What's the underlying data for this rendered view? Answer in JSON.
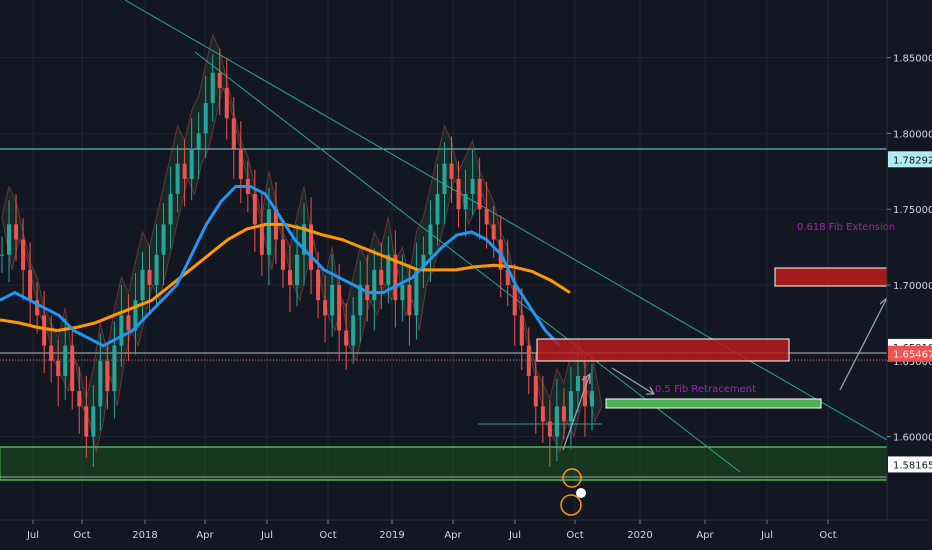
{
  "chart_data": {
    "type": "line",
    "instrument_note": "",
    "x_ticks": [
      "Jul",
      "Oct",
      "2018",
      "Apr",
      "Jul",
      "Oct",
      "2019",
      "Apr",
      "Jul",
      "Oct",
      "2020",
      "Apr",
      "Jul",
      "Oct"
    ],
    "y_ticks": [
      "1.85000",
      "1.80000",
      "1.75000",
      "1.70000",
      "1.65000",
      "1.60000"
    ],
    "ylim": [
      1.545,
      1.888
    ],
    "price_tags": [
      {
        "label": "1.78292",
        "value": 1.78292,
        "color": "#b2ebf2",
        "text_color": "#131722"
      },
      {
        "label": "1.65918",
        "value": 1.65918,
        "color": "#ffffff",
        "text_color": "#131722"
      },
      {
        "label": "1.65467",
        "value": 1.65467,
        "color": "#ef5350",
        "text_color": "#ffffff"
      },
      {
        "label": "1.58165",
        "value": 1.58165,
        "color": "#ffffff",
        "text_color": "#131722"
      }
    ],
    "annotations": [
      {
        "text": "0.618 Fib Extension",
        "color": "#9c27b0"
      },
      {
        "text": "0.5 Fib Retracement",
        "color": "#9c27b0"
      }
    ],
    "series": [
      {
        "kind": "price",
        "color_up": "#26a69a",
        "color_down": "#ef5350",
        "values": [
          1.72,
          1.74,
          1.73,
          1.71,
          1.69,
          1.68,
          1.66,
          1.65,
          1.64,
          1.66,
          1.63,
          1.62,
          1.6,
          1.62,
          1.65,
          1.63,
          1.66,
          1.68,
          1.67,
          1.69,
          1.71,
          1.7,
          1.72,
          1.74,
          1.76,
          1.78,
          1.77,
          1.79,
          1.8,
          1.82,
          1.84,
          1.83,
          1.81,
          1.79,
          1.77,
          1.76,
          1.74,
          1.72,
          1.75,
          1.73,
          1.71,
          1.7,
          1.72,
          1.74,
          1.71,
          1.69,
          1.68,
          1.7,
          1.67,
          1.66,
          1.68,
          1.7,
          1.69,
          1.71,
          1.7,
          1.72,
          1.69,
          1.7,
          1.68,
          1.71,
          1.72,
          1.74,
          1.76,
          1.78,
          1.77,
          1.75,
          1.76,
          1.77,
          1.75,
          1.74,
          1.73,
          1.71,
          1.7,
          1.68,
          1.66,
          1.64,
          1.62,
          1.61,
          1.6,
          1.62,
          1.61,
          1.63,
          1.64,
          1.62,
          1.63
        ]
      },
      {
        "kind": "ma-blue",
        "color": "#2196f3",
        "values": [
          1.69,
          1.695,
          1.69,
          1.685,
          1.68,
          1.67,
          1.665,
          1.66,
          1.665,
          1.67,
          1.68,
          1.69,
          1.7,
          1.72,
          1.74,
          1.755,
          1.765,
          1.765,
          1.76,
          1.745,
          1.73,
          1.72,
          1.71,
          1.705,
          1.7,
          1.695,
          1.695,
          1.7,
          1.705,
          1.715,
          1.725,
          1.733,
          1.735,
          1.73,
          1.72,
          1.7,
          1.685,
          1.67,
          1.66
        ]
      },
      {
        "kind": "ma-orange",
        "color": "#ff9800",
        "values": [
          1.677,
          1.675,
          1.672,
          1.67,
          1.672,
          1.675,
          1.68,
          1.685,
          1.69,
          1.7,
          1.71,
          1.72,
          1.73,
          1.737,
          1.74,
          1.74,
          1.737,
          1.733,
          1.73,
          1.725,
          1.72,
          1.715,
          1.71,
          1.71,
          1.71,
          1.712,
          1.713,
          1.712,
          1.709,
          1.703,
          1.695
        ]
      }
    ]
  }
}
